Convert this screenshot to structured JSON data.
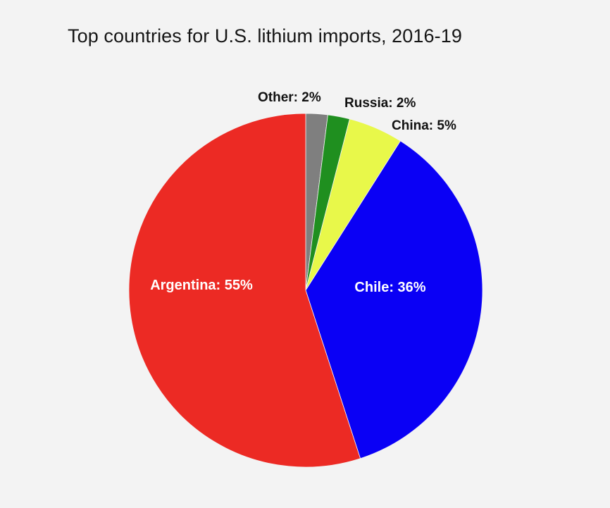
{
  "chart_data": {
    "type": "pie",
    "title": "Top countries for U.S. lithium imports, 2016-19",
    "start_angle_deg": 0,
    "direction": "clockwise",
    "slices": [
      {
        "label": "Other",
        "value": 2,
        "display": "Other: 2%",
        "color": "#7f7f7f",
        "label_position": "outside"
      },
      {
        "label": "Russia",
        "value": 2,
        "display": "Russia: 2%",
        "color": "#1f8f1f",
        "label_position": "outside"
      },
      {
        "label": "China",
        "value": 5,
        "display": "China: 5%",
        "color": "#e8f84a",
        "label_position": "outside"
      },
      {
        "label": "Chile",
        "value": 36,
        "display": "Chile: 36%",
        "color": "#0a00f5",
        "label_position": "inside"
      },
      {
        "label": "Argentina",
        "value": 55,
        "display": "Argentina: 55%",
        "color": "#ec2a24",
        "label_position": "inside"
      }
    ]
  }
}
